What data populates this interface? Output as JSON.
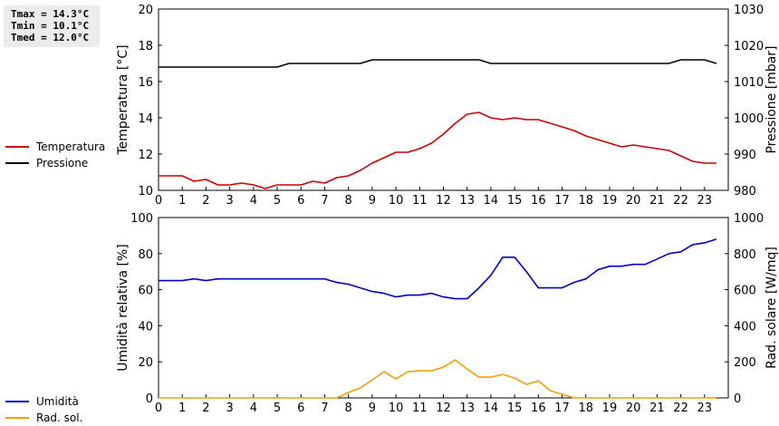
{
  "stats": {
    "tmax": "Tmax = 14.3°C",
    "tmin": "Tmin = 10.1°C",
    "tmed": "Tmed = 12.0°C"
  },
  "chart_data": [
    {
      "type": "line",
      "ylabel": "Temperatura [°C]",
      "y2label": "Pressione [mbar]",
      "xlim": [
        0,
        24
      ],
      "xticks": [
        0,
        1,
        2,
        3,
        4,
        5,
        6,
        7,
        8,
        9,
        10,
        11,
        12,
        13,
        14,
        15,
        16,
        17,
        18,
        19,
        20,
        21,
        22,
        23
      ],
      "ylim": [
        10,
        20
      ],
      "yticks": [
        10,
        12,
        14,
        16,
        18,
        20
      ],
      "y2lim": [
        980,
        1030
      ],
      "y2ticks": [
        980,
        990,
        1000,
        1010,
        1020,
        1030
      ],
      "grid": false,
      "legend_position": "left",
      "series": [
        {
          "name": "Temperatura",
          "axis": "left",
          "color": "#cc0000",
          "x": [
            0,
            0.5,
            1,
            1.5,
            2,
            2.5,
            3,
            3.5,
            4,
            4.5,
            5,
            5.5,
            6,
            6.5,
            7,
            7.5,
            8,
            8.5,
            9,
            9.5,
            10,
            10.5,
            11,
            11.5,
            12,
            12.5,
            13,
            13.5,
            14,
            14.5,
            15,
            15.5,
            16,
            16.5,
            17,
            17.5,
            18,
            18.5,
            19,
            19.5,
            20,
            20.5,
            21,
            21.5,
            22,
            22.5,
            23,
            23.5
          ],
          "values": [
            10.8,
            10.8,
            10.8,
            10.5,
            10.6,
            10.3,
            10.3,
            10.4,
            10.3,
            10.1,
            10.3,
            10.3,
            10.3,
            10.5,
            10.4,
            10.7,
            10.8,
            11.1,
            11.5,
            11.8,
            12.1,
            12.1,
            12.3,
            12.6,
            13.1,
            13.7,
            14.2,
            14.3,
            14.0,
            13.9,
            14.0,
            13.9,
            13.9,
            13.7,
            13.5,
            13.3,
            13.0,
            12.8,
            12.6,
            12.4,
            12.5,
            12.4,
            12.3,
            12.2,
            11.9,
            11.6,
            11.5,
            11.5
          ]
        },
        {
          "name": "Pressione",
          "axis": "right",
          "color": "#000000",
          "x": [
            0,
            5,
            5.5,
            8.5,
            9,
            13.5,
            14,
            21.5,
            22,
            23,
            23.5
          ],
          "values": [
            1014,
            1014,
            1015,
            1015,
            1016,
            1016,
            1015,
            1015,
            1016,
            1016,
            1015
          ]
        }
      ]
    },
    {
      "type": "line",
      "ylabel": "Umidità relativa [%]",
      "y2label": "Rad. solare [W/mq]",
      "xlim": [
        0,
        24
      ],
      "xticks": [
        0,
        1,
        2,
        3,
        4,
        5,
        6,
        7,
        8,
        9,
        10,
        11,
        12,
        13,
        14,
        15,
        16,
        17,
        18,
        19,
        20,
        21,
        22,
        23
      ],
      "ylim": [
        0,
        100
      ],
      "yticks": [
        0,
        20,
        40,
        60,
        80,
        100
      ],
      "y2lim": [
        0,
        1000
      ],
      "y2ticks": [
        0,
        200,
        400,
        600,
        800,
        1000
      ],
      "grid": false,
      "legend_position": "left",
      "series": [
        {
          "name": "Umidità",
          "axis": "left",
          "color": "#0000cc",
          "x": [
            0,
            0.5,
            1,
            1.5,
            2,
            2.5,
            3,
            3.5,
            4,
            4.5,
            5,
            5.5,
            6,
            6.5,
            7,
            7.5,
            8,
            8.5,
            9,
            9.5,
            10,
            10.5,
            11,
            11.5,
            12,
            12.5,
            13,
            13.5,
            14,
            14.5,
            15,
            15.5,
            16,
            16.5,
            17,
            17.5,
            18,
            18.5,
            19,
            19.5,
            20,
            20.5,
            21,
            21.5,
            22,
            22.5,
            23,
            23.5
          ],
          "values": [
            65,
            65,
            65,
            66,
            65,
            66,
            66,
            66,
            66,
            66,
            66,
            66,
            66,
            66,
            66,
            64,
            63,
            61,
            59,
            58,
            56,
            57,
            57,
            58,
            56,
            55,
            55,
            61,
            68,
            78,
            78,
            70,
            61,
            61,
            61,
            64,
            66,
            71,
            73,
            73,
            74,
            74,
            77,
            80,
            81,
            85,
            86,
            88
          ]
        },
        {
          "name": "Rad. sol.",
          "axis": "right",
          "color": "#f0a000",
          "x": [
            0,
            0.5,
            1,
            1.5,
            2,
            2.5,
            3,
            3.5,
            4,
            4.5,
            5,
            5.5,
            6,
            6.5,
            7,
            7.5,
            8,
            8.5,
            9,
            9.5,
            10,
            10.5,
            11,
            11.5,
            12,
            12.5,
            13,
            13.5,
            14,
            14.5,
            15,
            15.5,
            16,
            16.5,
            17,
            17.5,
            18,
            18.5,
            19,
            19.5,
            20,
            20.5,
            21,
            21.5,
            22,
            22.5,
            23,
            23.5
          ],
          "values": [
            0,
            0,
            0,
            0,
            0,
            0,
            0,
            0,
            0,
            0,
            0,
            0,
            0,
            0,
            0,
            0,
            30,
            55,
            100,
            145,
            105,
            145,
            150,
            150,
            170,
            210,
            160,
            115,
            115,
            130,
            110,
            75,
            95,
            40,
            20,
            0,
            0,
            0,
            0,
            0,
            0,
            0,
            0,
            0,
            0,
            0,
            0,
            0
          ]
        }
      ]
    }
  ]
}
